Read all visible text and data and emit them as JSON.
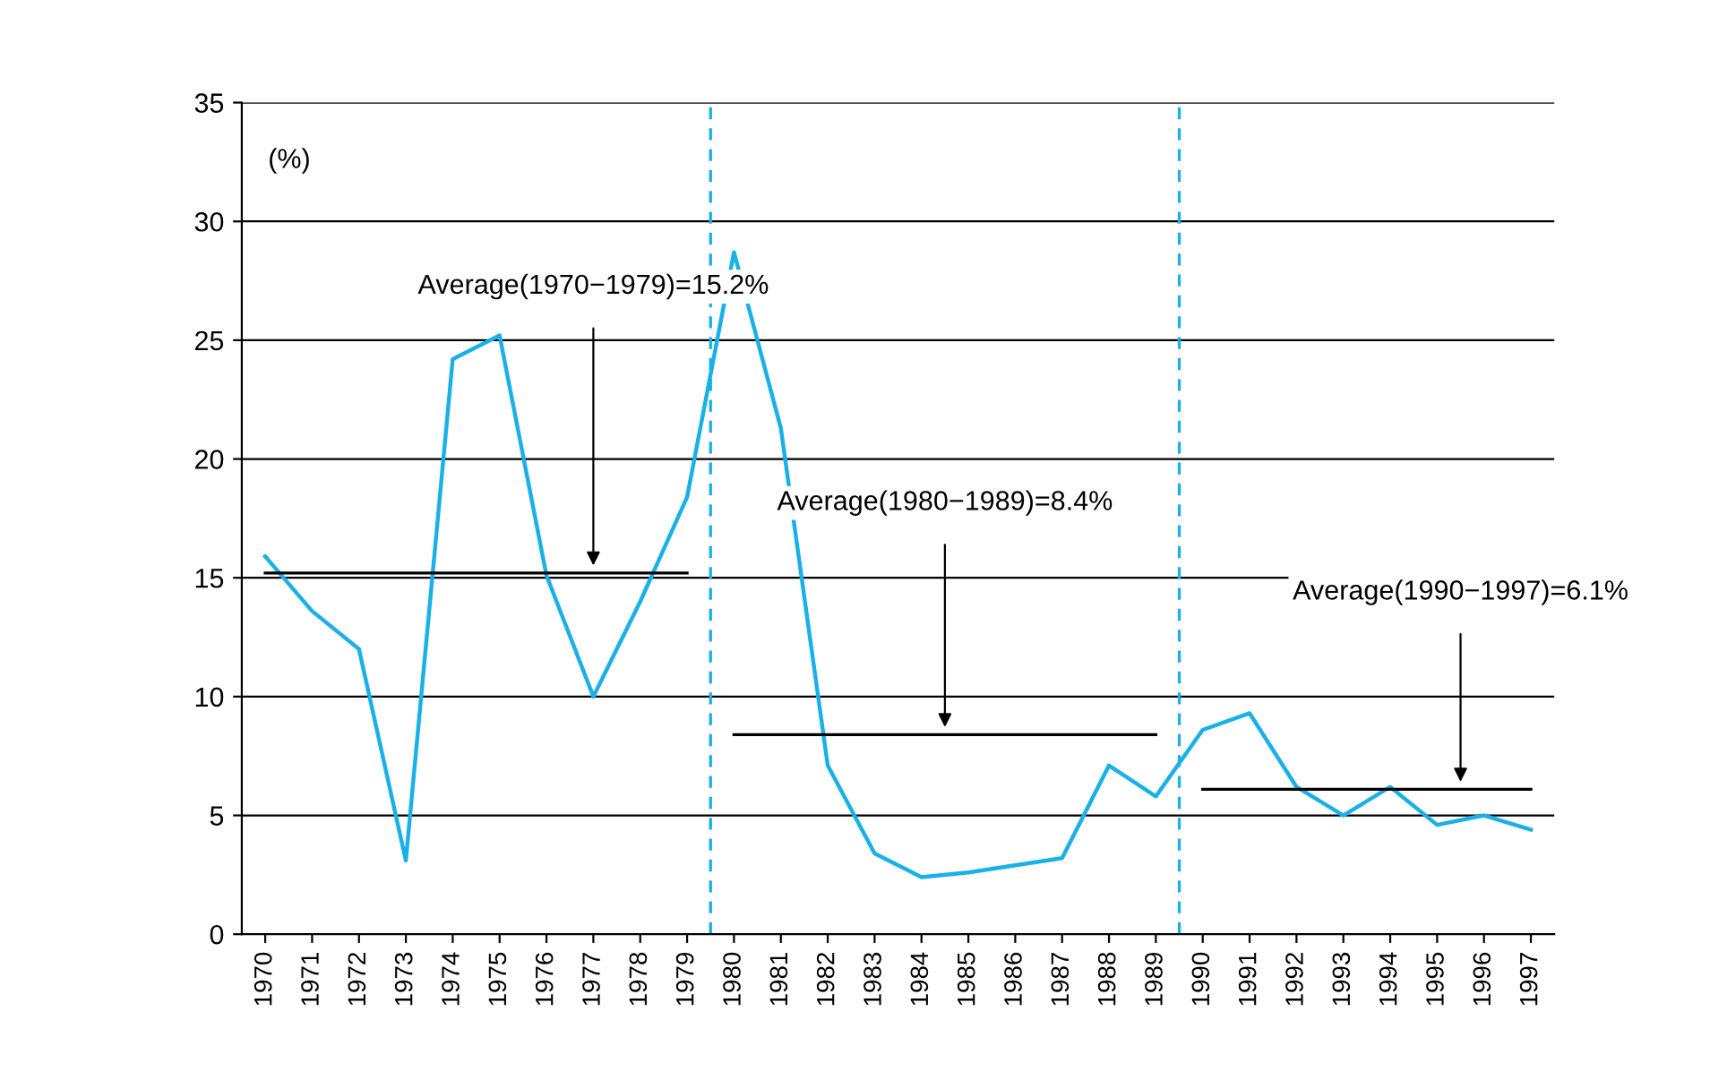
{
  "chart_data": {
    "type": "line",
    "ylabel": "(%)",
    "x": [
      1970,
      1971,
      1972,
      1973,
      1974,
      1975,
      1976,
      1977,
      1978,
      1979,
      1980,
      1981,
      1982,
      1983,
      1984,
      1985,
      1986,
      1987,
      1988,
      1989,
      1990,
      1991,
      1992,
      1993,
      1994,
      1995,
      1996,
      1997
    ],
    "series": [
      {
        "color": "#1ab0e8",
        "values": [
          15.9,
          13.6,
          12.0,
          3.1,
          24.2,
          25.2,
          15.1,
          10.0,
          14.0,
          18.4,
          28.7,
          21.3,
          7.1,
          3.4,
          2.4,
          2.6,
          2.9,
          3.2,
          7.1,
          5.8,
          8.6,
          9.3,
          6.2,
          5.0,
          6.2,
          4.6,
          5.0,
          4.4
        ]
      },
      {
        "color": "#000000",
        "x": [
          1970,
          1979
        ],
        "values": [
          15.2,
          15.2
        ]
      },
      {
        "color": "#000000",
        "x": [
          1980,
          1989
        ],
        "values": [
          8.4,
          8.4
        ]
      },
      {
        "color": "#000000",
        "x": [
          1990,
          1997
        ],
        "values": [
          6.1,
          6.1
        ]
      }
    ],
    "xlim": [
      1969.5,
      1997.5
    ],
    "xticks": [
      1970,
      1971,
      1972,
      1973,
      1974,
      1975,
      1976,
      1977,
      1978,
      1979,
      1980,
      1981,
      1982,
      1983,
      1984,
      1985,
      1986,
      1987,
      1988,
      1989,
      1990,
      1991,
      1992,
      1993,
      1994,
      1995,
      1996,
      1997
    ],
    "ylim": [
      0,
      35
    ],
    "yticks": [
      0,
      5,
      10,
      15,
      20,
      25,
      30,
      35
    ],
    "grid": "y",
    "ref_lines": [
      {
        "axis": "x",
        "value": 1979.5,
        "color": "#1ab0e8",
        "line_style": "dashed"
      },
      {
        "axis": "x",
        "value": 1989.5,
        "color": "#1ab0e8",
        "line_style": "dashed"
      }
    ],
    "annotations": [
      "Average(1970−1979)=15.2%",
      "Average(1980−1989)=8.4%",
      "Average(1990−1997)=6.1%"
    ]
  }
}
